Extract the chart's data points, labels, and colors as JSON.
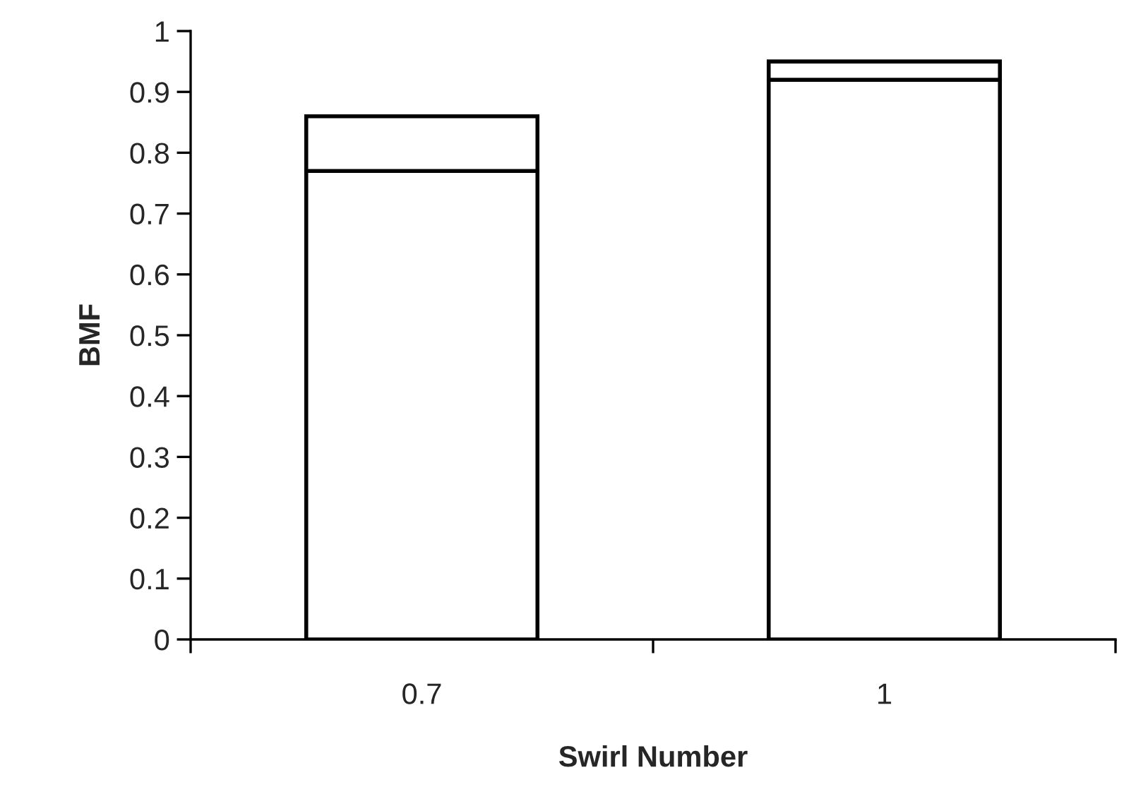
{
  "chart_data": {
    "type": "bar",
    "xlabel": "Swirl Number",
    "ylabel": "BMF",
    "categories": [
      "0.7",
      "1"
    ],
    "stacked": true,
    "series": [
      {
        "color": "#ffffff",
        "values": [
          0.77,
          0.92
        ]
      },
      {
        "color": "#ffffff",
        "values": [
          0.09,
          0.03
        ]
      }
    ],
    "ylim": [
      0,
      1
    ],
    "yticks": [
      0,
      {
        "value": 0.1,
        "label": "0.1"
      },
      {
        "value": 0.2,
        "label": "0.2"
      },
      {
        "value": 0.3,
        "label": "0.3"
      },
      {
        "value": 0.4,
        "label": "0.4"
      },
      {
        "value": 0.5,
        "label": "0.5"
      },
      {
        "value": 0.6,
        "label": "0.6"
      },
      {
        "value": 0.7,
        "label": "0.7"
      },
      {
        "value": 0.8,
        "label": "0.8"
      },
      {
        "value": 0.9,
        "label": "0.9"
      },
      1
    ],
    "grid": false,
    "legend": false
  }
}
